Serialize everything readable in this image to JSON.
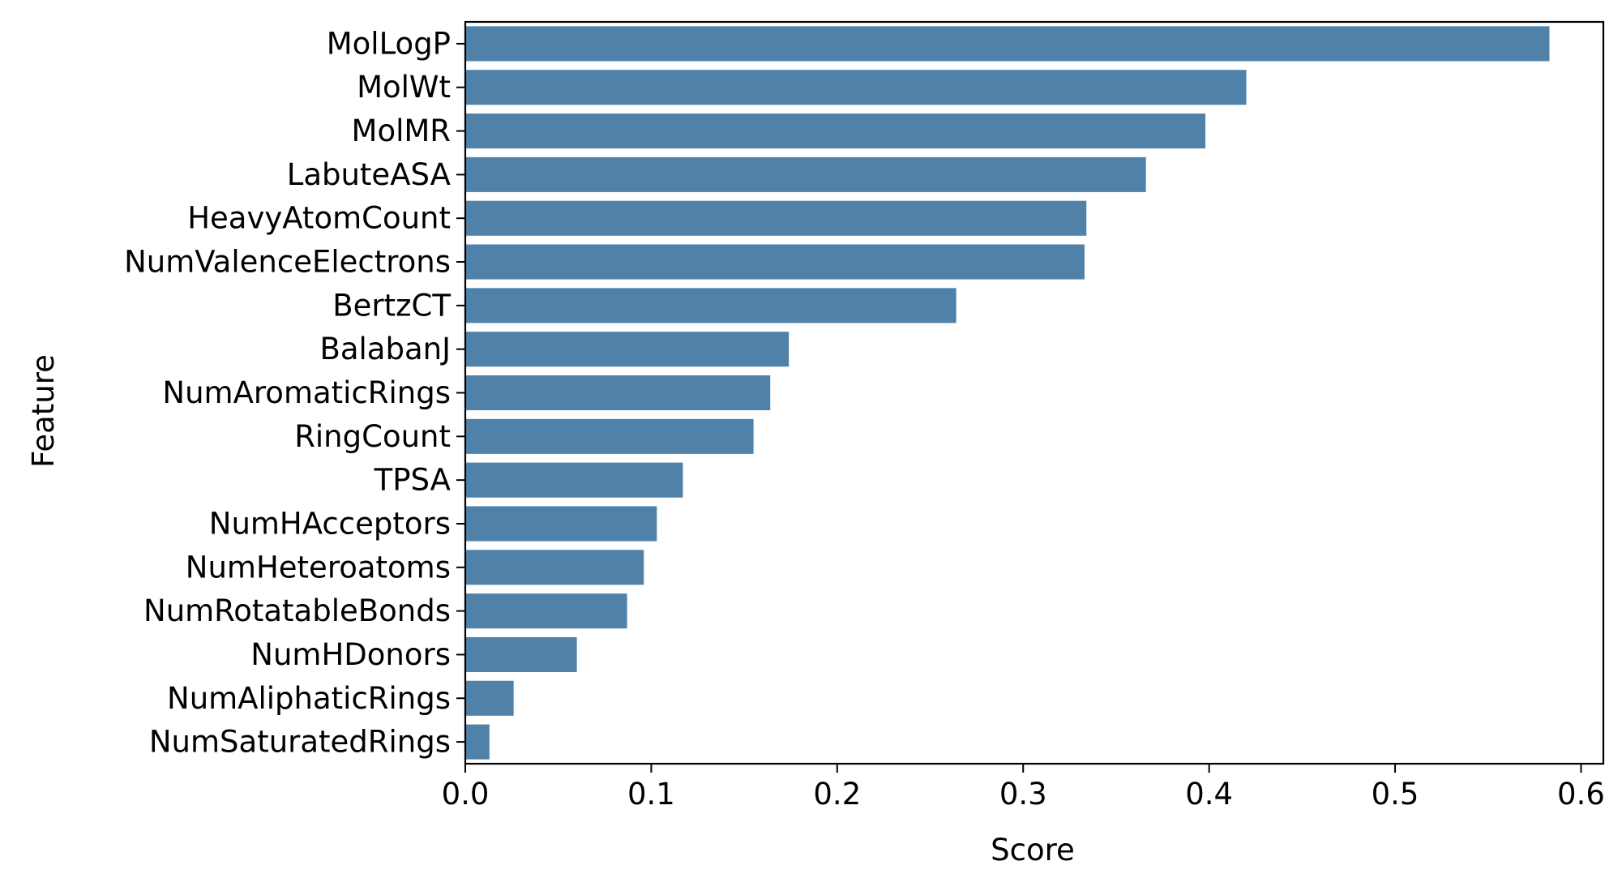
{
  "chart_data": {
    "type": "bar",
    "orientation": "horizontal",
    "title": "",
    "xlabel": "Score",
    "ylabel": "Feature",
    "xlim": [
      0.0,
      0.612
    ],
    "xticks": [
      0.0,
      0.1,
      0.2,
      0.3,
      0.4,
      0.5,
      0.6
    ],
    "xtick_labels": [
      "0.0",
      "0.1",
      "0.2",
      "0.3",
      "0.4",
      "0.5",
      "0.6"
    ],
    "grid": false,
    "bar_color": "#4f81a9",
    "categories": [
      "MolLogP",
      "MolWt",
      "MolMR",
      "LabuteASA",
      "HeavyAtomCount",
      "NumValenceElectrons",
      "BertzCT",
      "BalabanJ",
      "NumAromaticRings",
      "RingCount",
      "TPSA",
      "NumHAcceptors",
      "NumHeteroatoms",
      "NumRotatableBonds",
      "NumHDonors",
      "NumAliphaticRings",
      "NumSaturatedRings"
    ],
    "values": [
      0.583,
      0.42,
      0.398,
      0.366,
      0.334,
      0.333,
      0.264,
      0.174,
      0.164,
      0.155,
      0.117,
      0.103,
      0.096,
      0.087,
      0.06,
      0.026,
      0.013
    ]
  }
}
